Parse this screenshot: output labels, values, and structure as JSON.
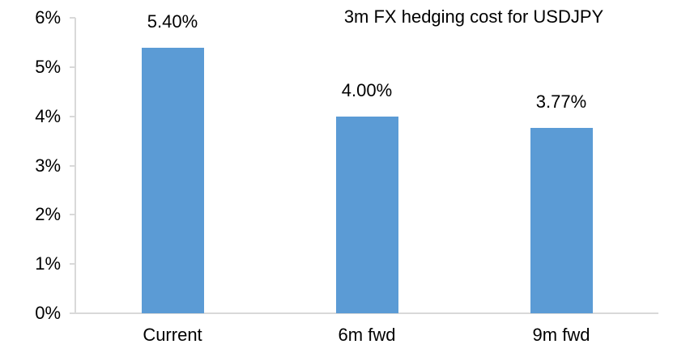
{
  "chart_data": {
    "type": "bar",
    "title": "3m FX hedging cost for USDJPY",
    "categories": [
      "Current",
      "6m fwd",
      "9m fwd"
    ],
    "values": [
      5.4,
      4.0,
      3.77
    ],
    "data_labels": [
      "5.40%",
      "4.00%",
      "3.77%"
    ],
    "y_tick_labels": [
      "0%",
      "1%",
      "2%",
      "3%",
      "4%",
      "5%",
      "6%"
    ],
    "y_tick_values": [
      0,
      1,
      2,
      3,
      4,
      5,
      6
    ],
    "ylim": [
      0,
      6
    ],
    "xlabel": "",
    "ylabel": "",
    "grid": false,
    "legend": false,
    "colors": {
      "bar": "#5B9BD5",
      "axis": "#D9D9D9",
      "text": "#000000",
      "background": "#FFFFFF"
    }
  }
}
